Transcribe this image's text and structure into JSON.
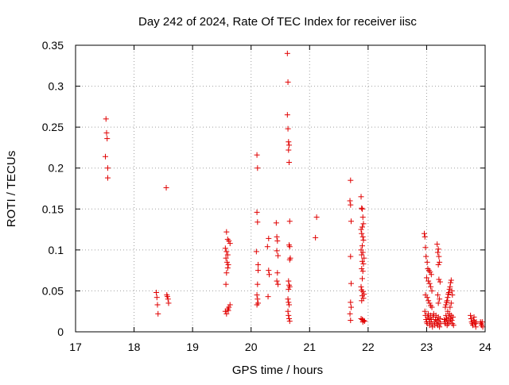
{
  "chart_data": {
    "type": "scatter",
    "title": "Day 242 of 2024, Rate Of TEC Index for receiver iisc",
    "xlabel": "GPS time / hours",
    "ylabel": "ROTI / TECUs",
    "xlim": [
      17,
      24
    ],
    "ylim": [
      0,
      0.35
    ],
    "xticks": [
      17,
      18,
      19,
      20,
      21,
      22,
      23,
      24
    ],
    "xtick_labels": [
      "17",
      "18",
      "19",
      "20",
      "21",
      "22",
      "23",
      "24"
    ],
    "yticks": [
      0,
      0.05,
      0.1,
      0.15,
      0.2,
      0.25,
      0.3,
      0.35
    ],
    "ytick_labels": [
      "0",
      "0.05",
      "0.1",
      "0.15",
      "0.2",
      "0.25",
      "0.3",
      "0.35"
    ],
    "grid": true,
    "marker": "+",
    "series": [
      {
        "name": "ROTI",
        "color": "#e00000",
        "points": [
          [
            17.52,
            0.26
          ],
          [
            17.53,
            0.243
          ],
          [
            17.54,
            0.236
          ],
          [
            17.51,
            0.214
          ],
          [
            17.55,
            0.2
          ],
          [
            17.55,
            0.188
          ],
          [
            18.38,
            0.048
          ],
          [
            18.39,
            0.042
          ],
          [
            18.4,
            0.033
          ],
          [
            18.41,
            0.022
          ],
          [
            18.55,
            0.176
          ],
          [
            18.56,
            0.045
          ],
          [
            18.57,
            0.043
          ],
          [
            18.58,
            0.04
          ],
          [
            18.59,
            0.035
          ],
          [
            19.58,
            0.122
          ],
          [
            19.6,
            0.113
          ],
          [
            19.62,
            0.111
          ],
          [
            19.64,
            0.108
          ],
          [
            19.56,
            0.102
          ],
          [
            19.58,
            0.098
          ],
          [
            19.6,
            0.094
          ],
          [
            19.57,
            0.09
          ],
          [
            19.59,
            0.085
          ],
          [
            19.61,
            0.082
          ],
          [
            19.6,
            0.078
          ],
          [
            19.58,
            0.072
          ],
          [
            19.57,
            0.058
          ],
          [
            19.56,
            0.025
          ],
          [
            19.58,
            0.022
          ],
          [
            19.6,
            0.028
          ],
          [
            19.62,
            0.03
          ],
          [
            19.64,
            0.033
          ],
          [
            19.61,
            0.026
          ],
          [
            20.1,
            0.216
          ],
          [
            20.11,
            0.2
          ],
          [
            20.1,
            0.146
          ],
          [
            20.11,
            0.134
          ],
          [
            20.09,
            0.098
          ],
          [
            20.12,
            0.082
          ],
          [
            20.12,
            0.075
          ],
          [
            20.11,
            0.058
          ],
          [
            20.1,
            0.045
          ],
          [
            20.11,
            0.04
          ],
          [
            20.12,
            0.035
          ],
          [
            20.1,
            0.033
          ],
          [
            20.3,
            0.114
          ],
          [
            20.28,
            0.104
          ],
          [
            20.3,
            0.075
          ],
          [
            20.31,
            0.07
          ],
          [
            20.29,
            0.043
          ],
          [
            20.43,
            0.133
          ],
          [
            20.44,
            0.116
          ],
          [
            20.45,
            0.111
          ],
          [
            20.44,
            0.099
          ],
          [
            20.46,
            0.093
          ],
          [
            20.45,
            0.072
          ],
          [
            20.44,
            0.062
          ],
          [
            20.46,
            0.058
          ],
          [
            20.62,
            0.34
          ],
          [
            20.63,
            0.305
          ],
          [
            20.62,
            0.265
          ],
          [
            20.63,
            0.248
          ],
          [
            20.64,
            0.232
          ],
          [
            20.65,
            0.228
          ],
          [
            20.64,
            0.222
          ],
          [
            20.65,
            0.207
          ],
          [
            20.66,
            0.135
          ],
          [
            20.65,
            0.106
          ],
          [
            20.66,
            0.104
          ],
          [
            20.67,
            0.09
          ],
          [
            20.66,
            0.088
          ],
          [
            20.64,
            0.062
          ],
          [
            20.65,
            0.057
          ],
          [
            20.66,
            0.055
          ],
          [
            20.64,
            0.052
          ],
          [
            20.63,
            0.04
          ],
          [
            20.64,
            0.036
          ],
          [
            20.65,
            0.033
          ],
          [
            20.63,
            0.025
          ],
          [
            20.64,
            0.02
          ],
          [
            20.65,
            0.016
          ],
          [
            20.66,
            0.013
          ],
          [
            21.12,
            0.14
          ],
          [
            21.1,
            0.115
          ],
          [
            21.7,
            0.185
          ],
          [
            21.69,
            0.16
          ],
          [
            21.7,
            0.155
          ],
          [
            21.71,
            0.135
          ],
          [
            21.7,
            0.092
          ],
          [
            21.71,
            0.059
          ],
          [
            21.7,
            0.036
          ],
          [
            21.71,
            0.03
          ],
          [
            21.69,
            0.022
          ],
          [
            21.7,
            0.014
          ],
          [
            21.88,
            0.165
          ],
          [
            21.89,
            0.151
          ],
          [
            21.9,
            0.15
          ],
          [
            21.91,
            0.14
          ],
          [
            21.92,
            0.132
          ],
          [
            21.9,
            0.128
          ],
          [
            21.88,
            0.125
          ],
          [
            21.89,
            0.12
          ],
          [
            21.91,
            0.116
          ],
          [
            21.92,
            0.112
          ],
          [
            21.9,
            0.105
          ],
          [
            21.88,
            0.1
          ],
          [
            21.91,
            0.097
          ],
          [
            21.89,
            0.094
          ],
          [
            21.93,
            0.09
          ],
          [
            21.9,
            0.086
          ],
          [
            21.92,
            0.083
          ],
          [
            21.89,
            0.077
          ],
          [
            21.91,
            0.074
          ],
          [
            21.9,
            0.065
          ],
          [
            21.88,
            0.055
          ],
          [
            21.89,
            0.051
          ],
          [
            21.91,
            0.049
          ],
          [
            21.93,
            0.046
          ],
          [
            21.9,
            0.044
          ],
          [
            21.92,
            0.041
          ],
          [
            21.89,
            0.038
          ],
          [
            21.88,
            0.016
          ],
          [
            21.9,
            0.015
          ],
          [
            21.92,
            0.014
          ],
          [
            21.94,
            0.013
          ],
          [
            21.91,
            0.012
          ],
          [
            22.96,
            0.12
          ],
          [
            22.97,
            0.116
          ],
          [
            22.98,
            0.103
          ],
          [
            22.99,
            0.092
          ],
          [
            23.01,
            0.085
          ],
          [
            23.02,
            0.077
          ],
          [
            23.04,
            0.075
          ],
          [
            23.06,
            0.073
          ],
          [
            23.08,
            0.07
          ],
          [
            23.0,
            0.066
          ],
          [
            23.03,
            0.062
          ],
          [
            23.05,
            0.059
          ],
          [
            23.07,
            0.055
          ],
          [
            23.09,
            0.05
          ],
          [
            22.98,
            0.045
          ],
          [
            23.01,
            0.042
          ],
          [
            23.03,
            0.038
          ],
          [
            23.05,
            0.035
          ],
          [
            23.07,
            0.032
          ],
          [
            23.09,
            0.03
          ],
          [
            22.97,
            0.025
          ],
          [
            22.98,
            0.02
          ],
          [
            22.99,
            0.015
          ],
          [
            23.0,
            0.012
          ],
          [
            23.01,
            0.01
          ],
          [
            23.02,
            0.018
          ],
          [
            23.03,
            0.022
          ],
          [
            23.04,
            0.016
          ],
          [
            23.05,
            0.008
          ],
          [
            23.06,
            0.012
          ],
          [
            23.07,
            0.02
          ],
          [
            23.08,
            0.015
          ],
          [
            23.09,
            0.01
          ],
          [
            23.1,
            0.006
          ],
          [
            23.11,
            0.018
          ],
          [
            23.12,
            0.022
          ],
          [
            23.13,
            0.012
          ],
          [
            23.14,
            0.008
          ],
          [
            23.15,
            0.015
          ],
          [
            23.16,
            0.02
          ],
          [
            23.17,
            0.01
          ],
          [
            23.18,
            0.014
          ],
          [
            23.19,
            0.008
          ],
          [
            23.2,
            0.018
          ],
          [
            23.21,
            0.012
          ],
          [
            23.22,
            0.006
          ],
          [
            23.23,
            0.016
          ],
          [
            23.24,
            0.01
          ],
          [
            23.18,
            0.107
          ],
          [
            23.2,
            0.101
          ],
          [
            23.19,
            0.097
          ],
          [
            23.21,
            0.092
          ],
          [
            23.22,
            0.085
          ],
          [
            23.2,
            0.082
          ],
          [
            23.21,
            0.064
          ],
          [
            23.23,
            0.061
          ],
          [
            23.19,
            0.045
          ],
          [
            23.22,
            0.04
          ],
          [
            23.2,
            0.035
          ],
          [
            23.32,
            0.03
          ],
          [
            23.33,
            0.033
          ],
          [
            23.34,
            0.036
          ],
          [
            23.35,
            0.038
          ],
          [
            23.36,
            0.042
          ],
          [
            23.37,
            0.046
          ],
          [
            23.38,
            0.048
          ],
          [
            23.39,
            0.052
          ],
          [
            23.4,
            0.055
          ],
          [
            23.41,
            0.06
          ],
          [
            23.42,
            0.063
          ],
          [
            23.43,
            0.05
          ],
          [
            23.44,
            0.045
          ],
          [
            23.42,
            0.035
          ],
          [
            23.4,
            0.03
          ],
          [
            23.36,
            0.025
          ],
          [
            23.3,
            0.015
          ],
          [
            23.31,
            0.012
          ],
          [
            23.32,
            0.01
          ],
          [
            23.33,
            0.02
          ],
          [
            23.34,
            0.016
          ],
          [
            23.35,
            0.008
          ],
          [
            23.36,
            0.014
          ],
          [
            23.37,
            0.01
          ],
          [
            23.38,
            0.018
          ],
          [
            23.39,
            0.022
          ],
          [
            23.4,
            0.012
          ],
          [
            23.41,
            0.016
          ],
          [
            23.42,
            0.02
          ],
          [
            23.43,
            0.014
          ],
          [
            23.44,
            0.01
          ],
          [
            23.45,
            0.018
          ],
          [
            23.46,
            0.008
          ],
          [
            23.75,
            0.02
          ],
          [
            23.76,
            0.016
          ],
          [
            23.77,
            0.012
          ],
          [
            23.78,
            0.01
          ],
          [
            23.79,
            0.008
          ],
          [
            23.8,
            0.014
          ],
          [
            23.81,
            0.018
          ],
          [
            23.82,
            0.012
          ],
          [
            23.83,
            0.01
          ],
          [
            23.84,
            0.006
          ],
          [
            23.85,
            0.012
          ],
          [
            23.92,
            0.012
          ],
          [
            23.93,
            0.01
          ],
          [
            23.94,
            0.008
          ],
          [
            23.95,
            0.012
          ],
          [
            23.96,
            0.006
          ]
        ]
      }
    ]
  }
}
